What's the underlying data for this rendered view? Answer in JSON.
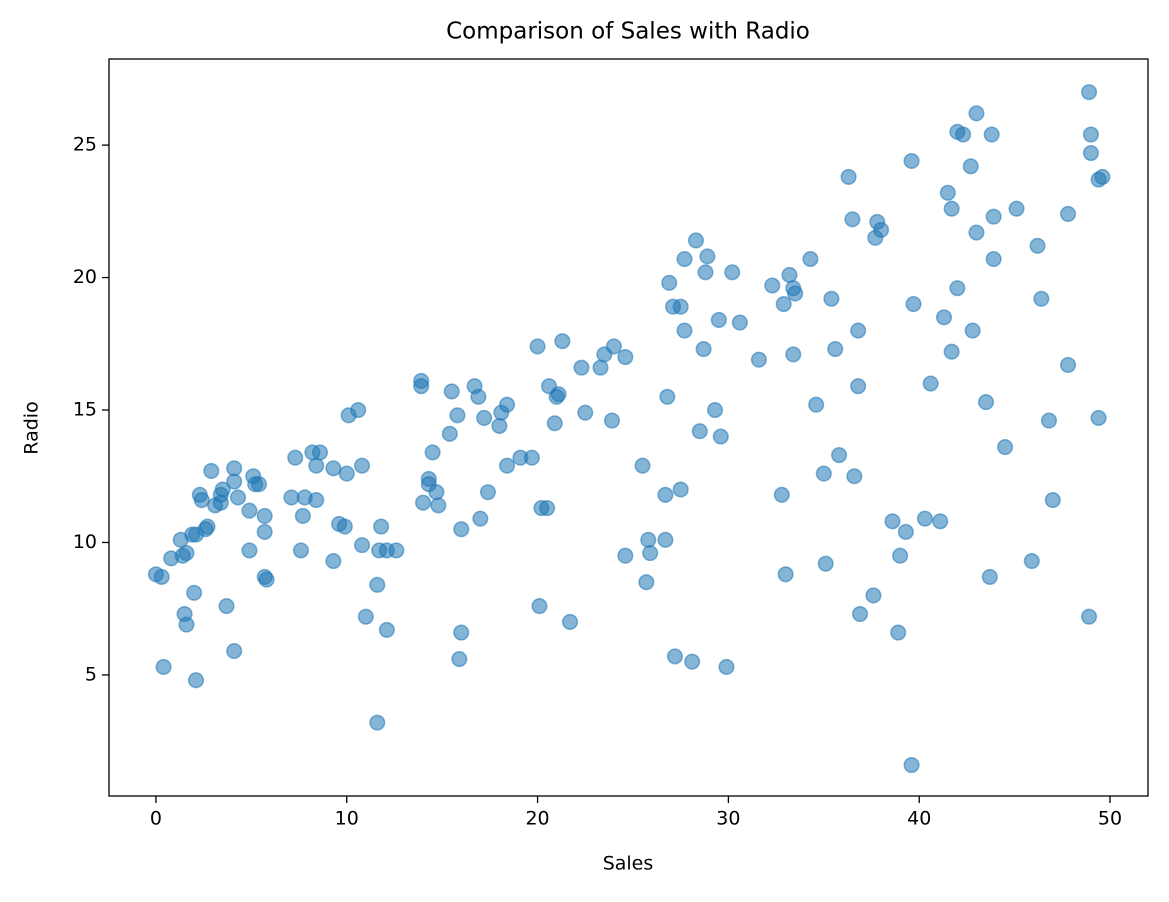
{
  "chart_data": {
    "type": "scatter",
    "title": "Comparison of Sales with Radio",
    "x_label": "Sales",
    "y_label": "Radio",
    "color": "#1f77b4",
    "alpha": 0.55,
    "x": [
      0,
      0.3,
      0.4,
      0.8,
      1.3,
      1.4,
      1.6,
      1.5,
      1.6,
      1.9,
      2.1,
      2.0,
      2.1,
      2.3,
      2.4,
      2.7,
      2.6,
      2.9,
      3.1,
      3.4,
      3.5,
      3.4,
      3.7,
      4.1,
      4.1,
      4.1,
      4.3,
      4.9,
      4.9,
      5.1,
      5.2,
      5.4,
      5.7,
      5.7,
      5.7,
      5.8,
      7.1,
      7.3,
      7.6,
      7.7,
      7.8,
      8.2,
      8.4,
      8.4,
      8.6,
      9.3,
      9.3,
      9.6,
      9.9,
      10.0,
      10.1,
      10.6,
      10.8,
      10.8,
      11.0,
      11.6,
      11.6,
      11.7,
      11.8,
      12.1,
      12.1,
      12.6,
      13.9,
      13.9,
      14.0,
      14.3,
      14.3,
      14.5,
      14.7,
      14.8,
      15.4,
      15.5,
      15.8,
      15.9,
      16.0,
      16.0,
      16.7,
      16.9,
      17.0,
      17.2,
      17.4,
      18.0,
      18.1,
      18.4,
      18.4,
      19.1,
      19.7,
      20.0,
      20.1,
      20.2,
      20.5,
      20.6,
      20.9,
      21.0,
      21.1,
      21.3,
      21.7,
      22.3,
      22.5,
      23.3,
      23.5,
      23.9,
      24.0,
      24.6,
      24.6,
      25.5,
      25.7,
      25.8,
      25.9,
      26.7,
      26.7,
      26.8,
      26.9,
      27.1,
      27.2,
      27.5,
      27.5,
      27.7,
      27.7,
      28.1,
      28.3,
      28.5,
      28.7,
      28.8,
      28.9,
      29.3,
      29.5,
      29.6,
      29.9,
      30.2,
      30.6,
      31.6,
      32.3,
      32.8,
      32.9,
      33.0,
      33.2,
      33.4,
      33.5,
      33.4,
      34.3,
      34.6,
      35.0,
      35.1,
      35.4,
      35.6,
      35.8,
      36.3,
      36.5,
      36.6,
      36.8,
      36.8,
      36.9,
      37.6,
      37.7,
      37.8,
      38.0,
      38.6,
      38.9,
      39.0,
      39.3,
      39.6,
      39.6,
      39.7,
      40.3,
      40.6,
      41.1,
      41.3,
      41.5,
      41.7,
      41.7,
      42.0,
      42.0,
      42.3,
      42.7,
      42.8,
      43.0,
      43.0,
      43.5,
      43.7,
      43.8,
      43.9,
      43.9,
      44.5,
      45.1,
      45.9,
      46.2,
      46.4,
      46.8,
      47.0,
      47.8,
      47.8,
      48.9,
      48.9,
      49.0,
      49.0,
      49.4,
      49.4,
      49.6
    ],
    "values": [
      8.8,
      8.7,
      5.3,
      9.4,
      10.1,
      9.5,
      9.6,
      7.3,
      6.9,
      10.3,
      10.3,
      8.1,
      4.8,
      11.8,
      11.6,
      10.6,
      10.5,
      12.7,
      11.4,
      11.5,
      12.0,
      11.8,
      7.6,
      12.8,
      12.3,
      5.9,
      11.7,
      11.2,
      9.7,
      12.5,
      12.2,
      12.2,
      11.0,
      10.4,
      8.7,
      8.6,
      11.7,
      13.2,
      9.7,
      11.0,
      11.7,
      13.4,
      12.9,
      11.6,
      13.4,
      12.8,
      9.3,
      10.7,
      10.6,
      12.6,
      14.8,
      15.0,
      12.9,
      9.9,
      7.2,
      8.4,
      3.2,
      9.7,
      10.6,
      9.7,
      6.7,
      9.7,
      16.1,
      15.9,
      11.5,
      12.4,
      12.2,
      13.4,
      11.9,
      11.4,
      14.1,
      15.7,
      14.8,
      5.6,
      10.5,
      6.6,
      15.9,
      15.5,
      10.9,
      14.7,
      11.9,
      14.4,
      14.9,
      15.2,
      12.9,
      13.2,
      13.2,
      17.4,
      7.6,
      11.3,
      11.3,
      15.9,
      14.5,
      15.5,
      15.6,
      17.6,
      7.0,
      16.6,
      14.9,
      16.6,
      17.1,
      14.6,
      17.4,
      17.0,
      9.5,
      12.9,
      8.5,
      10.1,
      9.6,
      10.1,
      11.8,
      15.5,
      19.8,
      18.9,
      5.7,
      18.9,
      12.0,
      18.0,
      20.7,
      5.5,
      21.4,
      14.2,
      17.3,
      20.2,
      20.8,
      15.0,
      18.4,
      14.0,
      5.3,
      20.2,
      18.3,
      16.9,
      19.7,
      11.8,
      19.0,
      8.8,
      20.1,
      19.6,
      19.4,
      17.1,
      20.7,
      15.2,
      12.6,
      9.2,
      19.2,
      17.3,
      13.3,
      23.8,
      22.2,
      12.5,
      18.0,
      15.9,
      7.3,
      8.0,
      21.5,
      22.1,
      21.8,
      10.8,
      6.6,
      9.5,
      10.4,
      1.6,
      24.4,
      19.0,
      10.9,
      16.0,
      10.8,
      18.5,
      23.2,
      22.6,
      17.2,
      19.6,
      25.5,
      25.4,
      24.2,
      18.0,
      21.7,
      26.2,
      15.3,
      8.7,
      25.4,
      22.3,
      20.7,
      13.6,
      22.6,
      9.3,
      21.2,
      19.2,
      14.6,
      11.6,
      22.4,
      16.7,
      27.0,
      7.2,
      24.7,
      25.4,
      14.7,
      23.7,
      23.8
    ],
    "xlim": [
      -2.46,
      51.99
    ],
    "ylim": [
      0.43,
      28.25
    ],
    "xticks": [
      0,
      10,
      20,
      30,
      40,
      50
    ],
    "yticks": [
      5,
      10,
      15,
      20,
      25
    ]
  }
}
